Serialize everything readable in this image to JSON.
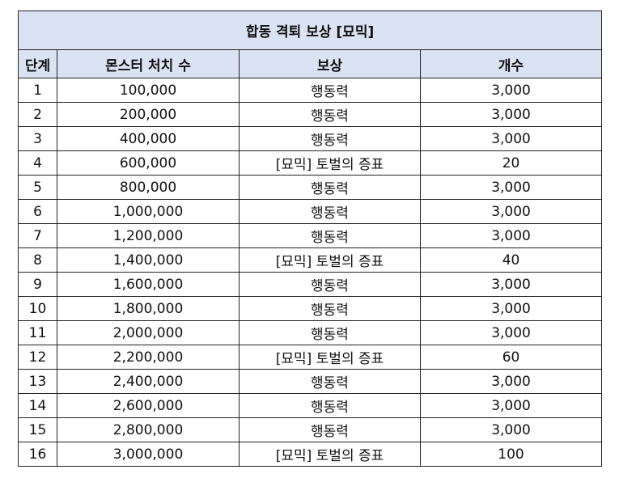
{
  "title": "합동 격퇴 보상 [묘믹]",
  "headers": [
    "단계",
    "몬스터 처치 수",
    "보상",
    "개수"
  ],
  "rows": [
    [
      "1",
      "100,000",
      "행동력",
      "3,000"
    ],
    [
      "2",
      "200,000",
      "행동력",
      "3,000"
    ],
    [
      "3",
      "400,000",
      "행동력",
      "3,000"
    ],
    [
      "4",
      "600,000",
      "[묘믹] 토벌의 증표",
      "20"
    ],
    [
      "5",
      "800,000",
      "행동력",
      "3,000"
    ],
    [
      "6",
      "1,000,000",
      "행동력",
      "3,000"
    ],
    [
      "7",
      "1,200,000",
      "행동력",
      "3,000"
    ],
    [
      "8",
      "1,400,000",
      "[묘믹] 토벌의 증표",
      "40"
    ],
    [
      "9",
      "1,600,000",
      "행동력",
      "3,000"
    ],
    [
      "10",
      "1,800,000",
      "행동력",
      "3,000"
    ],
    [
      "11",
      "2,000,000",
      "행동력",
      "3,000"
    ],
    [
      "12",
      "2,200,000",
      "[묘믹] 토벌의 증표",
      "60"
    ],
    [
      "13",
      "2,400,000",
      "행동력",
      "3,000"
    ],
    [
      "14",
      "2,600,000",
      "행동력",
      "3,000"
    ],
    [
      "15",
      "2,800,000",
      "행동력",
      "3,000"
    ],
    [
      "16",
      "3,000,000",
      "[묘믹] 토벌의 증표",
      "100"
    ]
  ],
  "colors": {
    "header_bg": "#dae3f3",
    "border": "#222222"
  }
}
